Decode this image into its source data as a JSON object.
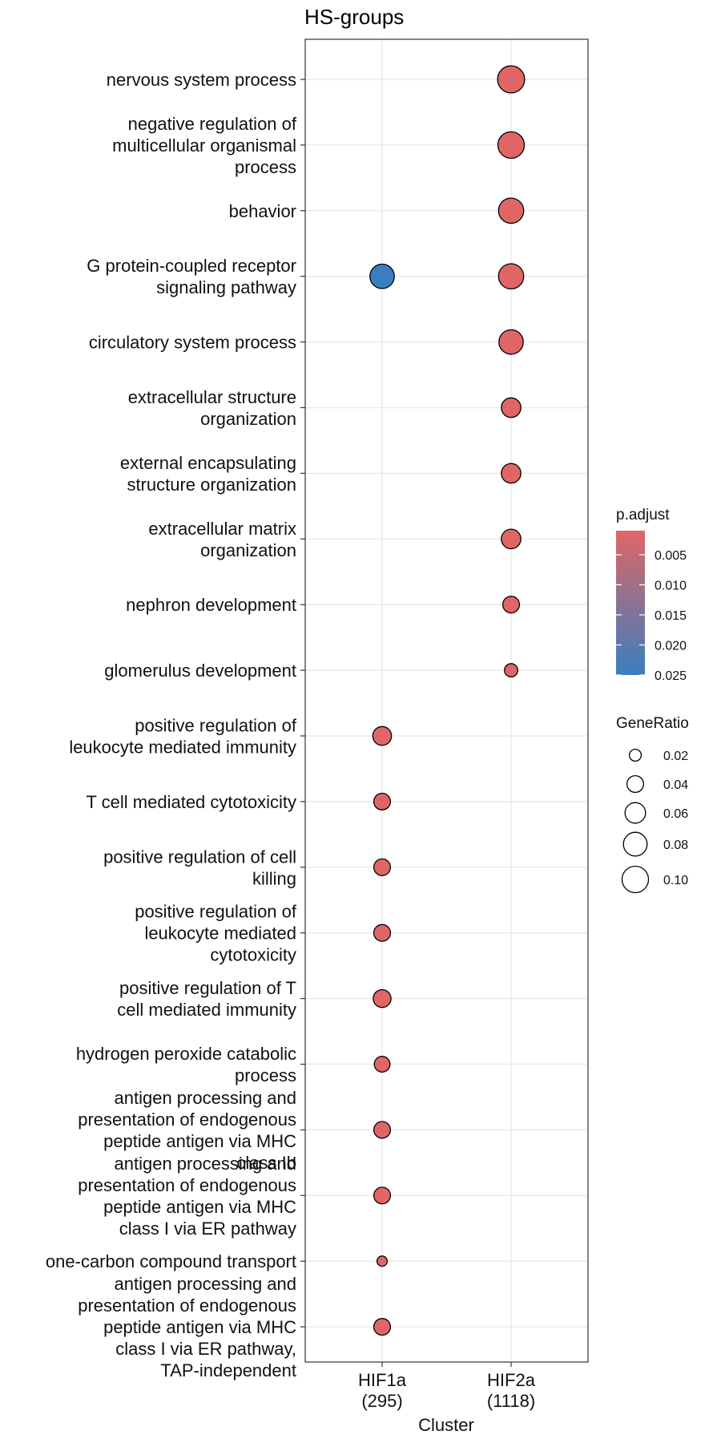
{
  "chart_data": {
    "type": "scatter",
    "title": "HS-groups",
    "xlabel": "Cluster",
    "ylabel": "",
    "x_categories": [
      {
        "lines": [
          "HIF1a",
          "(295)"
        ]
      },
      {
        "lines": [
          "HIF2a",
          "(1118)"
        ]
      }
    ],
    "y_categories": [
      {
        "lines": [
          "nervous system process"
        ]
      },
      {
        "lines": [
          "negative regulation of",
          "multicellular organismal",
          "process"
        ]
      },
      {
        "lines": [
          "behavior"
        ]
      },
      {
        "lines": [
          "G protein-coupled receptor",
          "signaling pathway"
        ]
      },
      {
        "lines": [
          "circulatory system process"
        ]
      },
      {
        "lines": [
          "extracellular structure",
          "organization"
        ]
      },
      {
        "lines": [
          "external encapsulating",
          "structure organization"
        ]
      },
      {
        "lines": [
          "extracellular matrix",
          "organization"
        ]
      },
      {
        "lines": [
          "nephron development"
        ]
      },
      {
        "lines": [
          "glomerulus development"
        ]
      },
      {
        "lines": [
          "positive regulation of",
          "leukocyte mediated immunity"
        ]
      },
      {
        "lines": [
          "T cell mediated cytotoxicity"
        ]
      },
      {
        "lines": [
          "positive regulation of cell",
          "killing"
        ]
      },
      {
        "lines": [
          "positive regulation of",
          "leukocyte mediated",
          "cytotoxicity"
        ]
      },
      {
        "lines": [
          "positive regulation of T",
          "cell mediated immunity"
        ]
      },
      {
        "lines": [
          "hydrogen peroxide catabolic",
          "process"
        ]
      },
      {
        "lines": [
          "antigen processing and",
          "presentation of endogenous",
          "peptide antigen via MHC",
          "class Ib"
        ]
      },
      {
        "lines": [
          "antigen processing and",
          "presentation of endogenous",
          "peptide antigen via MHC",
          "class I via ER pathway"
        ]
      },
      {
        "lines": [
          "one-carbon compound transport"
        ]
      },
      {
        "lines": [
          "antigen processing and",
          "presentation of endogenous",
          "peptide antigen via MHC",
          "class I via ER pathway,",
          "TAP-independent"
        ]
      }
    ],
    "points": [
      {
        "cluster": 1,
        "term": 0,
        "gene_ratio": 0.105,
        "p_adjust": 0.001
      },
      {
        "cluster": 1,
        "term": 1,
        "gene_ratio": 0.1,
        "p_adjust": 0.001
      },
      {
        "cluster": 1,
        "term": 2,
        "gene_ratio": 0.09,
        "p_adjust": 0.001
      },
      {
        "cluster": 1,
        "term": 3,
        "gene_ratio": 0.09,
        "p_adjust": 0.001
      },
      {
        "cluster": 0,
        "term": 3,
        "gene_ratio": 0.085,
        "p_adjust": 0.026
      },
      {
        "cluster": 1,
        "term": 4,
        "gene_ratio": 0.085,
        "p_adjust": 0.001
      },
      {
        "cluster": 1,
        "term": 5,
        "gene_ratio": 0.055,
        "p_adjust": 0.001
      },
      {
        "cluster": 1,
        "term": 6,
        "gene_ratio": 0.055,
        "p_adjust": 0.001
      },
      {
        "cluster": 1,
        "term": 7,
        "gene_ratio": 0.055,
        "p_adjust": 0.001
      },
      {
        "cluster": 1,
        "term": 8,
        "gene_ratio": 0.04,
        "p_adjust": 0.001
      },
      {
        "cluster": 1,
        "term": 9,
        "gene_ratio": 0.025,
        "p_adjust": 0.001
      },
      {
        "cluster": 0,
        "term": 10,
        "gene_ratio": 0.05,
        "p_adjust": 0.001
      },
      {
        "cluster": 0,
        "term": 11,
        "gene_ratio": 0.04,
        "p_adjust": 0.001
      },
      {
        "cluster": 0,
        "term": 12,
        "gene_ratio": 0.04,
        "p_adjust": 0.001
      },
      {
        "cluster": 0,
        "term": 13,
        "gene_ratio": 0.04,
        "p_adjust": 0.001
      },
      {
        "cluster": 0,
        "term": 14,
        "gene_ratio": 0.045,
        "p_adjust": 0.001
      },
      {
        "cluster": 0,
        "term": 15,
        "gene_ratio": 0.035,
        "p_adjust": 0.001
      },
      {
        "cluster": 0,
        "term": 16,
        "gene_ratio": 0.04,
        "p_adjust": 0.001
      },
      {
        "cluster": 0,
        "term": 17,
        "gene_ratio": 0.04,
        "p_adjust": 0.001
      },
      {
        "cluster": 0,
        "term": 18,
        "gene_ratio": 0.015,
        "p_adjust": 0.001
      },
      {
        "cluster": 0,
        "term": 19,
        "gene_ratio": 0.04,
        "p_adjust": 0.001
      }
    ],
    "legend_color": {
      "title": "p.adjust",
      "ticks": [
        0.005,
        0.01,
        0.015,
        0.02,
        0.025
      ],
      "tick_labels": [
        "0.005",
        "0.010",
        "0.015",
        "0.020",
        "0.025"
      ],
      "range": [
        0.001,
        0.025
      ],
      "low_color": "#E06666",
      "high_color": "#3A7EBF"
    },
    "legend_size": {
      "title": "GeneRatio",
      "values": [
        0.02,
        0.04,
        0.06,
        0.08,
        0.1
      ],
      "labels": [
        "0.02",
        "0.04",
        "0.06",
        "0.08",
        "0.10"
      ]
    },
    "grid": true,
    "legend_position": "right"
  }
}
